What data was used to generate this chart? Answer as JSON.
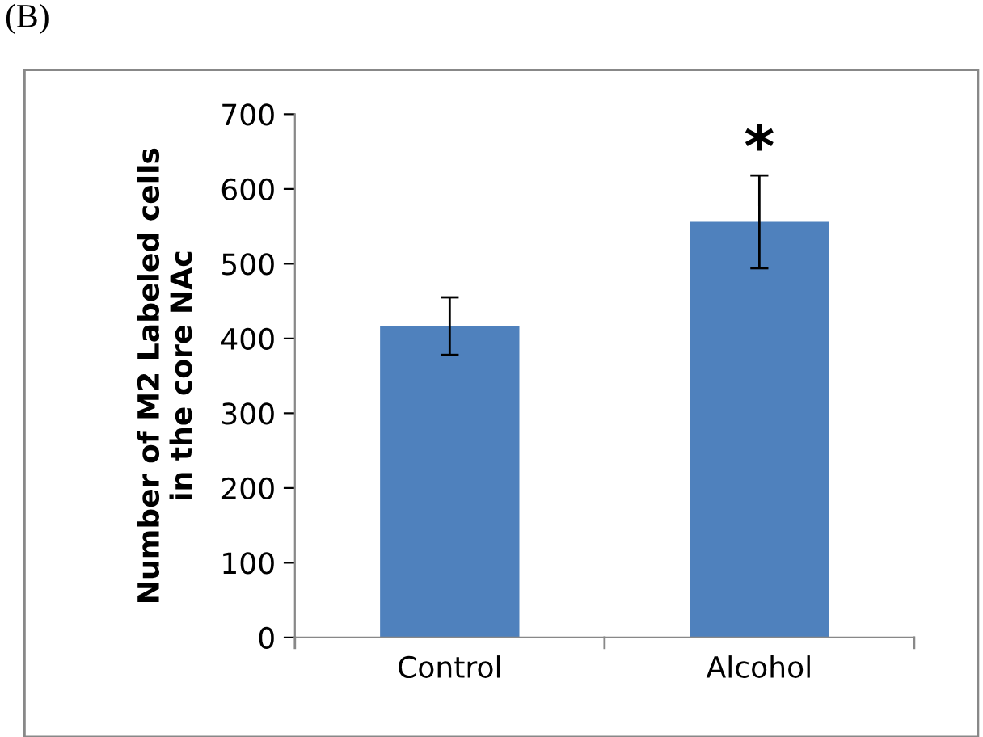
{
  "chart_data": {
    "type": "bar",
    "ylabel": "Number of M2 Labeled cells\nin the core NAc",
    "categories": [
      "Control",
      "Alcohol"
    ],
    "values": [
      416,
      556
    ],
    "errors": [
      [
        378,
        455
      ],
      [
        494,
        618
      ]
    ],
    "color": "#4f81bd",
    "ylim": [
      0,
      700
    ],
    "yticks": [
      0,
      100,
      200,
      300,
      400,
      500,
      600,
      700
    ],
    "grid": false,
    "legend": false,
    "annotations": [
      "(B)",
      "*"
    ]
  }
}
